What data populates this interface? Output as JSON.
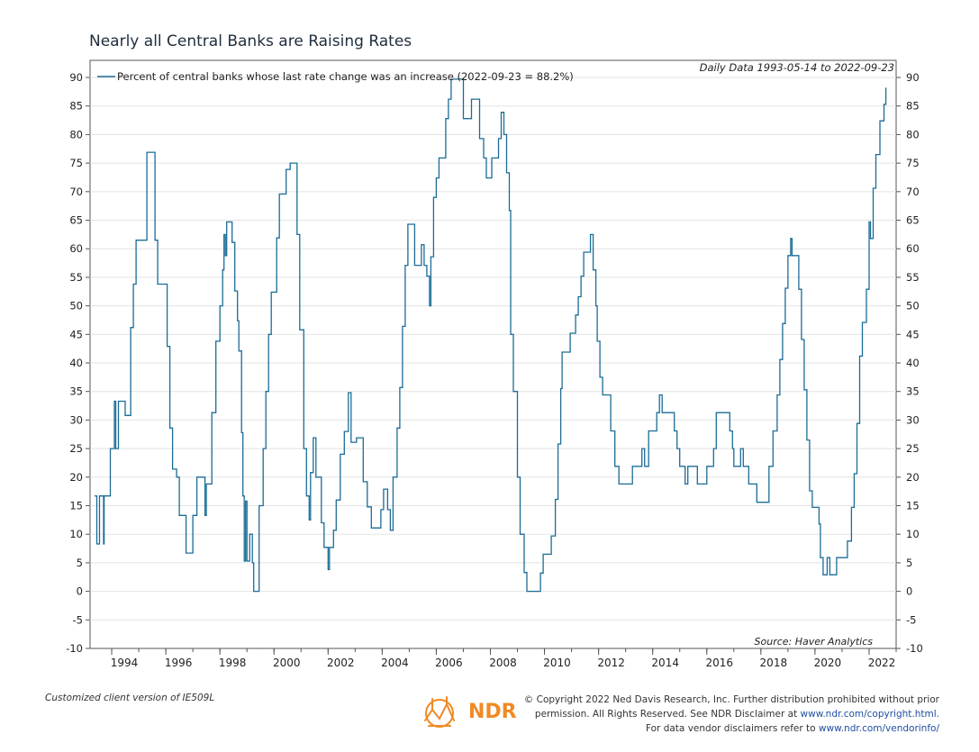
{
  "chart_data": {
    "type": "line",
    "title": "Nearly all Central Banks are Raising Rates",
    "subtitle": "Daily Data 1993-05-14 to 2022-09-23",
    "source": "Source: Haver Analytics",
    "legend": {
      "label": "Percent of central banks whose last rate change was an increase (2022-09-23 = 88.2%)",
      "placement": "top-left"
    },
    "xlabel": "",
    "ylabel": "",
    "xlim": [
      1993.2,
      2023.0
    ],
    "ylim": [
      -10,
      93
    ],
    "x_ticks": [
      1994,
      1996,
      1998,
      2000,
      2002,
      2004,
      2006,
      2008,
      2010,
      2012,
      2014,
      2016,
      2018,
      2020,
      2022
    ],
    "y_ticks": [
      -10,
      -5,
      0,
      5,
      10,
      15,
      20,
      25,
      30,
      35,
      40,
      45,
      50,
      55,
      60,
      65,
      70,
      75,
      80,
      85,
      90
    ],
    "color": "#1b6c96",
    "series": [
      {
        "points": [
          [
            1993.37,
            16.7
          ],
          [
            1993.45,
            8.3
          ],
          [
            1993.55,
            16.7
          ],
          [
            1993.7,
            8.3
          ],
          [
            1993.72,
            16.7
          ],
          [
            1993.9,
            16.7
          ],
          [
            1993.95,
            25
          ],
          [
            1994.1,
            33.3
          ],
          [
            1994.15,
            25
          ],
          [
            1994.25,
            33.3
          ],
          [
            1994.4,
            33.3
          ],
          [
            1994.5,
            30.8
          ],
          [
            1994.65,
            30.8
          ],
          [
            1994.7,
            46.2
          ],
          [
            1994.8,
            53.8
          ],
          [
            1994.9,
            61.5
          ],
          [
            1995.2,
            61.5
          ],
          [
            1995.3,
            76.9
          ],
          [
            1995.55,
            76.9
          ],
          [
            1995.6,
            61.5
          ],
          [
            1995.7,
            53.8
          ],
          [
            1996.0,
            53.8
          ],
          [
            1996.05,
            42.9
          ],
          [
            1996.15,
            28.6
          ],
          [
            1996.25,
            21.4
          ],
          [
            1996.4,
            20
          ],
          [
            1996.5,
            13.3
          ],
          [
            1996.7,
            13.3
          ],
          [
            1996.75,
            6.7
          ],
          [
            1996.95,
            6.7
          ],
          [
            1997.0,
            13.3
          ],
          [
            1997.15,
            20
          ],
          [
            1997.4,
            20
          ],
          [
            1997.45,
            13.3
          ],
          [
            1997.5,
            18.8
          ],
          [
            1997.65,
            18.8
          ],
          [
            1997.7,
            31.3
          ],
          [
            1997.85,
            43.8
          ],
          [
            1997.95,
            43.8
          ],
          [
            1998.0,
            50
          ],
          [
            1998.1,
            56.3
          ],
          [
            1998.15,
            62.5
          ],
          [
            1998.2,
            58.8
          ],
          [
            1998.25,
            64.7
          ],
          [
            1998.4,
            64.7
          ],
          [
            1998.45,
            61.1
          ],
          [
            1998.55,
            52.6
          ],
          [
            1998.65,
            47.4
          ],
          [
            1998.7,
            42.1
          ],
          [
            1998.8,
            27.8
          ],
          [
            1998.85,
            16.7
          ],
          [
            1998.9,
            5.3
          ],
          [
            1998.95,
            15.8
          ],
          [
            1999.0,
            5.3
          ],
          [
            1999.1,
            10
          ],
          [
            1999.2,
            5
          ],
          [
            1999.25,
            0
          ],
          [
            1999.4,
            0
          ],
          [
            1999.45,
            15
          ],
          [
            1999.55,
            15
          ],
          [
            1999.6,
            25
          ],
          [
            1999.7,
            35
          ],
          [
            1999.8,
            45
          ],
          [
            1999.9,
            52.4
          ],
          [
            2000.0,
            52.4
          ],
          [
            2000.1,
            61.9
          ],
          [
            2000.2,
            69.6
          ],
          [
            2000.4,
            69.6
          ],
          [
            2000.45,
            73.9
          ],
          [
            2000.55,
            73.9
          ],
          [
            2000.6,
            75
          ],
          [
            2000.8,
            75
          ],
          [
            2000.85,
            62.5
          ],
          [
            2000.95,
            45.8
          ],
          [
            2001.1,
            25
          ],
          [
            2001.2,
            16.7
          ],
          [
            2001.3,
            12.5
          ],
          [
            2001.35,
            20.8
          ],
          [
            2001.45,
            26.9
          ],
          [
            2001.55,
            20
          ],
          [
            2001.75,
            12
          ],
          [
            2001.85,
            7.7
          ],
          [
            2002.0,
            3.8
          ],
          [
            2002.05,
            7.7
          ],
          [
            2002.2,
            10.7
          ],
          [
            2002.3,
            16
          ],
          [
            2002.45,
            24
          ],
          [
            2002.6,
            28
          ],
          [
            2002.75,
            34.8
          ],
          [
            2002.85,
            26.1
          ],
          [
            2002.95,
            26.1
          ],
          [
            2003.05,
            26.9
          ],
          [
            2003.2,
            26.9
          ],
          [
            2003.3,
            19.2
          ],
          [
            2003.45,
            14.8
          ],
          [
            2003.6,
            11.1
          ],
          [
            2003.85,
            11.1
          ],
          [
            2003.95,
            14.3
          ],
          [
            2004.05,
            17.9
          ],
          [
            2004.2,
            14.3
          ],
          [
            2004.3,
            10.7
          ],
          [
            2004.4,
            20
          ],
          [
            2004.55,
            28.6
          ],
          [
            2004.65,
            35.7
          ],
          [
            2004.75,
            46.4
          ],
          [
            2004.85,
            57.1
          ],
          [
            2004.95,
            64.3
          ],
          [
            2005.15,
            64.3
          ],
          [
            2005.2,
            57.1
          ],
          [
            2005.35,
            57.1
          ],
          [
            2005.45,
            60.7
          ],
          [
            2005.55,
            57.1
          ],
          [
            2005.65,
            55.2
          ],
          [
            2005.75,
            50
          ],
          [
            2005.8,
            58.6
          ],
          [
            2005.9,
            69
          ],
          [
            2006.0,
            72.4
          ],
          [
            2006.1,
            75.9
          ],
          [
            2006.25,
            75.9
          ],
          [
            2006.35,
            82.8
          ],
          [
            2006.45,
            86.2
          ],
          [
            2006.55,
            89.7
          ],
          [
            2006.95,
            89.7
          ],
          [
            2007.0,
            82.8
          ],
          [
            2007.25,
            82.8
          ],
          [
            2007.3,
            86.2
          ],
          [
            2007.55,
            86.2
          ],
          [
            2007.6,
            79.3
          ],
          [
            2007.75,
            75.9
          ],
          [
            2007.85,
            72.4
          ],
          [
            2008.0,
            72.4
          ],
          [
            2008.05,
            75.9
          ],
          [
            2008.25,
            75.9
          ],
          [
            2008.3,
            79.3
          ],
          [
            2008.4,
            83.9
          ],
          [
            2008.5,
            80
          ],
          [
            2008.6,
            73.3
          ],
          [
            2008.7,
            66.7
          ],
          [
            2008.75,
            45
          ],
          [
            2008.85,
            35
          ],
          [
            2009.0,
            20
          ],
          [
            2009.1,
            10
          ],
          [
            2009.25,
            3.3
          ],
          [
            2009.35,
            0
          ],
          [
            2009.8,
            0
          ],
          [
            2009.85,
            3.2
          ],
          [
            2009.95,
            6.5
          ],
          [
            2010.15,
            6.5
          ],
          [
            2010.25,
            9.7
          ],
          [
            2010.4,
            16.1
          ],
          [
            2010.5,
            25.8
          ],
          [
            2010.6,
            35.5
          ],
          [
            2010.65,
            41.9
          ],
          [
            2010.85,
            41.9
          ],
          [
            2010.95,
            45.2
          ],
          [
            2011.15,
            48.4
          ],
          [
            2011.25,
            51.6
          ],
          [
            2011.35,
            55.2
          ],
          [
            2011.45,
            59.4
          ],
          [
            2011.65,
            59.4
          ],
          [
            2011.7,
            62.5
          ],
          [
            2011.8,
            56.3
          ],
          [
            2011.9,
            50
          ],
          [
            2011.95,
            43.8
          ],
          [
            2012.05,
            37.5
          ],
          [
            2012.15,
            34.4
          ],
          [
            2012.35,
            34.4
          ],
          [
            2012.45,
            28.1
          ],
          [
            2012.6,
            21.9
          ],
          [
            2012.75,
            18.8
          ],
          [
            2013.15,
            18.8
          ],
          [
            2013.25,
            21.9
          ],
          [
            2013.55,
            21.9
          ],
          [
            2013.6,
            25
          ],
          [
            2013.7,
            21.9
          ],
          [
            2013.8,
            21.9
          ],
          [
            2013.85,
            28.1
          ],
          [
            2014.05,
            28.1
          ],
          [
            2014.15,
            31.3
          ],
          [
            2014.25,
            34.4
          ],
          [
            2014.35,
            31.3
          ],
          [
            2014.75,
            31.3
          ],
          [
            2014.8,
            28.1
          ],
          [
            2014.9,
            25
          ],
          [
            2015.0,
            21.9
          ],
          [
            2015.2,
            18.8
          ],
          [
            2015.3,
            21.9
          ],
          [
            2015.6,
            21.9
          ],
          [
            2015.65,
            18.8
          ],
          [
            2015.9,
            18.8
          ],
          [
            2016.0,
            21.9
          ],
          [
            2016.2,
            21.9
          ],
          [
            2016.25,
            25
          ],
          [
            2016.35,
            31.3
          ],
          [
            2016.75,
            31.3
          ],
          [
            2016.85,
            28.1
          ],
          [
            2016.95,
            25
          ],
          [
            2017.0,
            21.9
          ],
          [
            2017.15,
            21.9
          ],
          [
            2017.25,
            25
          ],
          [
            2017.35,
            21.9
          ],
          [
            2017.55,
            18.8
          ],
          [
            2017.75,
            18.8
          ],
          [
            2017.85,
            15.6
          ],
          [
            2018.2,
            15.6
          ],
          [
            2018.3,
            21.9
          ],
          [
            2018.45,
            28.1
          ],
          [
            2018.6,
            34.4
          ],
          [
            2018.7,
            40.6
          ],
          [
            2018.8,
            46.9
          ],
          [
            2018.9,
            53.1
          ],
          [
            2019.0,
            58.8
          ],
          [
            2019.1,
            61.8
          ],
          [
            2019.15,
            58.8
          ],
          [
            2019.35,
            58.8
          ],
          [
            2019.4,
            52.9
          ],
          [
            2019.5,
            44.1
          ],
          [
            2019.6,
            35.3
          ],
          [
            2019.7,
            26.5
          ],
          [
            2019.8,
            17.6
          ],
          [
            2019.9,
            14.7
          ],
          [
            2020.1,
            14.7
          ],
          [
            2020.15,
            11.8
          ],
          [
            2020.2,
            5.9
          ],
          [
            2020.3,
            2.9
          ],
          [
            2020.45,
            5.9
          ],
          [
            2020.55,
            2.9
          ],
          [
            2020.75,
            2.9
          ],
          [
            2020.8,
            5.9
          ],
          [
            2021.15,
            5.9
          ],
          [
            2021.2,
            8.8
          ],
          [
            2021.35,
            14.7
          ],
          [
            2021.45,
            20.6
          ],
          [
            2021.55,
            29.4
          ],
          [
            2021.65,
            41.2
          ],
          [
            2021.75,
            47.1
          ],
          [
            2021.9,
            52.9
          ],
          [
            2022.0,
            64.7
          ],
          [
            2022.05,
            61.8
          ],
          [
            2022.15,
            70.6
          ],
          [
            2022.25,
            76.5
          ],
          [
            2022.4,
            82.4
          ],
          [
            2022.55,
            85.3
          ],
          [
            2022.62,
            88.2
          ]
        ]
      }
    ]
  },
  "footer": {
    "client_version": "Customized client version of IE509L",
    "copyright_line1": "© Copyright 2022 Ned Davis Research, Inc. Further distribution prohibited without prior",
    "copyright_line2_a": "permission. All Rights Reserved. See NDR Disclaimer at ",
    "copyright_link": "www.ndr.com/copyright.html.",
    "copyright_line3_a": "For data vendor disclaimers refer to ",
    "vendor_link": "www.ndr.com/vendorinfo/",
    "logo_text": "NDR"
  }
}
